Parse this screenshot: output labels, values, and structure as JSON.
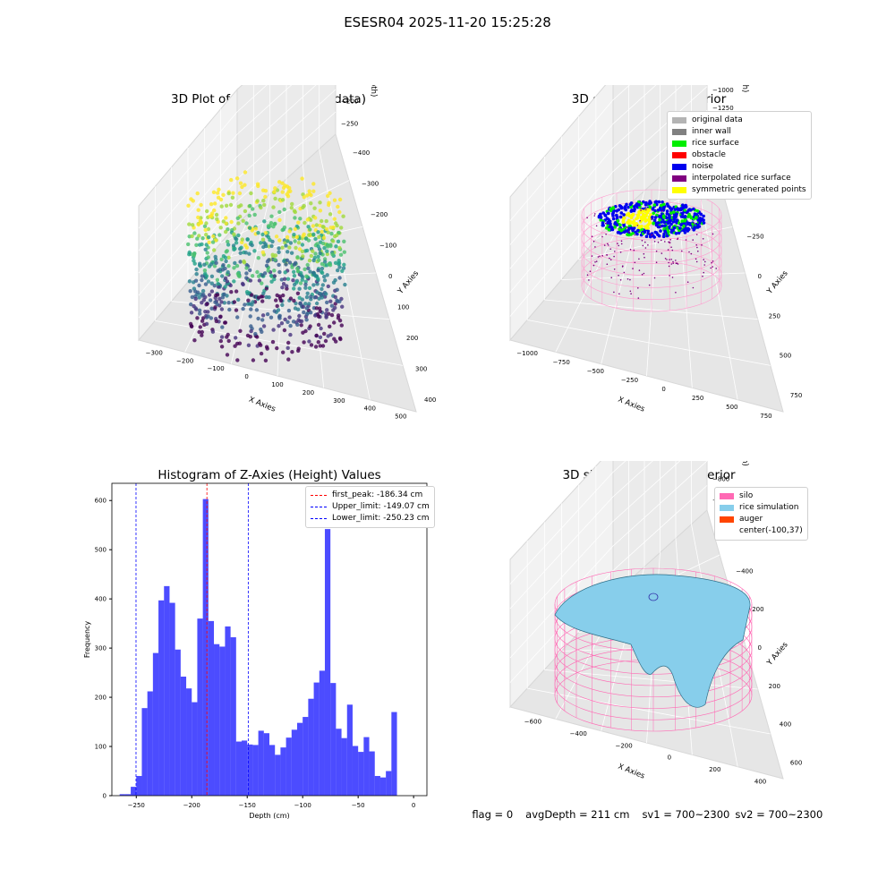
{
  "suptitle": "ESESR04 2025-11-20 15:25:28",
  "panels": {
    "raw": {
      "title": "3D Plot of Silo Interior(row data)",
      "xlabel": "X Axies",
      "ylabel": "Y Axies",
      "zlabel": "Z Axies (Depth)",
      "xticks": [
        "−300",
        "−200",
        "−100",
        "0",
        "100",
        "200",
        "300",
        "400",
        "500"
      ],
      "yticks": [
        "400",
        "300",
        "200",
        "100",
        "0",
        "−100",
        "−200",
        "−300",
        "−400"
      ],
      "zticks": [
        "0",
        "−50",
        "−100",
        "−150",
        "−200",
        "−250"
      ]
    },
    "classify": {
      "title": "3D classify of Silo Interior",
      "xlabel": "X Axies",
      "ylabel": "Y Axies",
      "zlabel": "Z Axies (Depth)",
      "xticks": [
        "−1000",
        "−750",
        "−500",
        "−250",
        "0",
        "250",
        "500",
        "750"
      ],
      "yticks": [
        "750",
        "500",
        "250",
        "0",
        "−250",
        "−500",
        "−750"
      ],
      "zticks": [
        "250",
        "0",
        "−250",
        "−500",
        "−750",
        "−1000",
        "−1250",
        "−1500"
      ],
      "legend": [
        {
          "label": "original data",
          "color": "#b4b4b4"
        },
        {
          "label": "inner wall",
          "color": "#808080"
        },
        {
          "label": "rice surface",
          "color": "#00ee00"
        },
        {
          "label": "obstacle",
          "color": "#ff0000"
        },
        {
          "label": "noise",
          "color": "#0000ee"
        },
        {
          "label": "interpolated rice surface",
          "color": "#800080"
        },
        {
          "label": "symmetric generated points",
          "color": "#ffff00"
        }
      ]
    },
    "simulation": {
      "title": "3D simulation of Silo Interior",
      "xlabel": "X Axies",
      "ylabel": "Y Axies",
      "zlabel": "Z Axies (Depth)",
      "xticks": [
        "−600",
        "−400",
        "−200",
        "0",
        "200",
        "400"
      ],
      "yticks": [
        "600",
        "400",
        "200",
        "0",
        "−200",
        "−400",
        "−600"
      ],
      "zticks": [
        "200",
        "0",
        "−200",
        "−400",
        "−600",
        "−800",
        "−1000"
      ],
      "legend": [
        {
          "label": "silo",
          "color": "#ff69b4"
        },
        {
          "label": "rice simulation",
          "color": "#87ceeb"
        },
        {
          "label": "auger",
          "color": "#ff4500"
        },
        {
          "label": "center(-100,37)",
          "color": ""
        }
      ]
    }
  },
  "status": {
    "flag": "flag = 0",
    "avg": "avgDepth = 211 cm",
    "sv1": "sv1 = 700~2300",
    "sv2": "sv2 = 700~2300"
  },
  "chart_data": {
    "type": "bar",
    "title": "Histogram of Z-Axies (Height) Values",
    "xlabel": "Depth (cm)",
    "ylabel": "Frequency",
    "xlim": [
      -272,
      12
    ],
    "ylim": [
      0,
      635
    ],
    "xticks": [
      -250,
      -200,
      -150,
      -100,
      -50,
      0
    ],
    "yticks": [
      0,
      100,
      200,
      300,
      400,
      500,
      600
    ],
    "bar_color": "#0000ff",
    "bin_width": 5,
    "bins": [
      {
        "x0": -265,
        "v": 3
      },
      {
        "x0": -260,
        "v": 3
      },
      {
        "x0": -255,
        "v": 18
      },
      {
        "x0": -250,
        "v": 40
      },
      {
        "x0": -245,
        "v": 178
      },
      {
        "x0": -240,
        "v": 212
      },
      {
        "x0": -235,
        "v": 290
      },
      {
        "x0": -230,
        "v": 397
      },
      {
        "x0": -225,
        "v": 426
      },
      {
        "x0": -220,
        "v": 392
      },
      {
        "x0": -215,
        "v": 297
      },
      {
        "x0": -210,
        "v": 242
      },
      {
        "x0": -205,
        "v": 218
      },
      {
        "x0": -200,
        "v": 190
      },
      {
        "x0": -195,
        "v": 360
      },
      {
        "x0": -190,
        "v": 603
      },
      {
        "x0": -185,
        "v": 355
      },
      {
        "x0": -180,
        "v": 308
      },
      {
        "x0": -175,
        "v": 303
      },
      {
        "x0": -170,
        "v": 344
      },
      {
        "x0": -165,
        "v": 322
      },
      {
        "x0": -160,
        "v": 110
      },
      {
        "x0": -155,
        "v": 112
      },
      {
        "x0": -150,
        "v": 104
      },
      {
        "x0": -145,
        "v": 103
      },
      {
        "x0": -140,
        "v": 132
      },
      {
        "x0": -135,
        "v": 127
      },
      {
        "x0": -130,
        "v": 103
      },
      {
        "x0": -125,
        "v": 83
      },
      {
        "x0": -120,
        "v": 98
      },
      {
        "x0": -115,
        "v": 118
      },
      {
        "x0": -110,
        "v": 134
      },
      {
        "x0": -105,
        "v": 148
      },
      {
        "x0": -100,
        "v": 160
      },
      {
        "x0": -95,
        "v": 197
      },
      {
        "x0": -90,
        "v": 230
      },
      {
        "x0": -85,
        "v": 254
      },
      {
        "x0": -80,
        "v": 542
      },
      {
        "x0": -75,
        "v": 229
      },
      {
        "x0": -70,
        "v": 136
      },
      {
        "x0": -65,
        "v": 117
      },
      {
        "x0": -60,
        "v": 185
      },
      {
        "x0": -55,
        "v": 101
      },
      {
        "x0": -50,
        "v": 89
      },
      {
        "x0": -45,
        "v": 119
      },
      {
        "x0": -40,
        "v": 90
      },
      {
        "x0": -35,
        "v": 40
      },
      {
        "x0": -30,
        "v": 37
      },
      {
        "x0": -25,
        "v": 50
      },
      {
        "x0": -20,
        "v": 170
      }
    ],
    "vlines": [
      {
        "label": "first_peak: -186.34 cm",
        "x": -186.34,
        "color": "#ff0000"
      },
      {
        "label": "Upper_limit: -149.07 cm",
        "x": -149.07,
        "color": "#0000ff"
      },
      {
        "label": "Lower_limit: -250.23 cm",
        "x": -250.23,
        "color": "#0000ff"
      }
    ]
  }
}
